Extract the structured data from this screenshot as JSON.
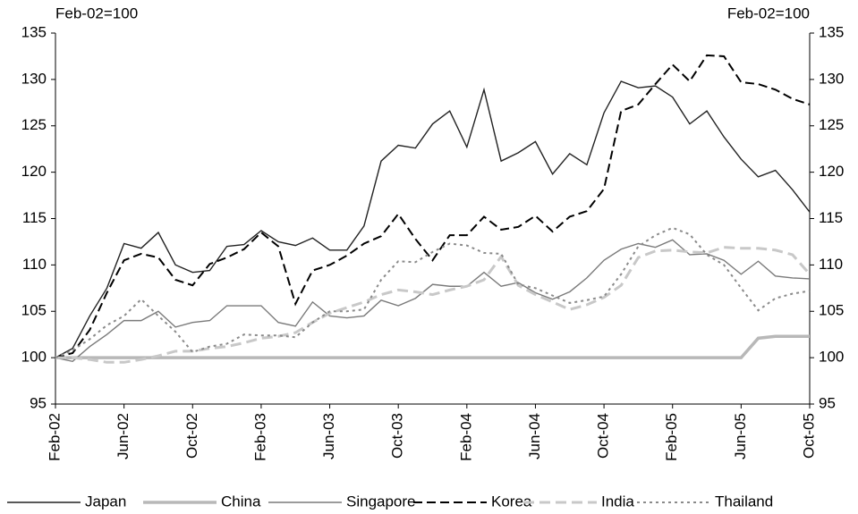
{
  "chart_data": {
    "type": "line",
    "ylabel": "Feb-02=100",
    "y2label": "Feb-02=100",
    "categories": [
      "Feb-02",
      null,
      null,
      null,
      "Jun-02",
      null,
      null,
      null,
      "Oct-02",
      null,
      null,
      null,
      "Feb-03",
      null,
      null,
      null,
      "Jun-03",
      null,
      null,
      null,
      "Oct-03",
      null,
      null,
      null,
      "Feb-04",
      null,
      null,
      null,
      "Jun-04",
      null,
      null,
      null,
      "Oct-04",
      null,
      null,
      null,
      "Feb-05",
      null,
      null,
      null,
      "Jun-05",
      null,
      null,
      null,
      "Oct-05"
    ],
    "ylim": [
      95,
      135
    ],
    "yticks": [
      95,
      100,
      105,
      110,
      115,
      120,
      125,
      130,
      135
    ],
    "y2lim": [
      95,
      135
    ],
    "y2ticks": [
      95,
      100,
      105,
      110,
      115,
      120,
      125,
      130,
      135
    ],
    "legend": "bottom",
    "series": [
      {
        "name": "Japan",
        "color": "#222222",
        "style": "solid",
        "values": [
          100,
          101,
          104.5,
          107.5,
          112.3,
          111.8,
          113.5,
          110,
          109.2,
          109.4,
          112,
          112.2,
          113.7,
          112.5,
          112.1,
          112.9,
          111.6,
          111.6,
          114.2,
          121.2,
          122.9,
          122.6,
          125.2,
          126.6,
          122.7,
          128.9,
          121.2,
          122.1,
          123.3,
          119.8,
          122,
          120.8,
          126.4,
          129.8,
          129.1,
          129.3,
          128.1,
          125.2,
          126.6,
          123.8,
          121.4,
          119.5,
          120.2,
          118.1,
          115.7
        ]
      },
      {
        "name": "China",
        "color": "#b8b8b8",
        "style": "thick",
        "values": [
          100,
          100,
          100,
          100,
          100,
          100,
          100,
          100,
          100,
          100,
          100,
          100,
          100,
          100,
          100,
          100,
          100,
          100,
          100,
          100,
          100,
          100,
          100,
          100,
          100,
          100,
          100,
          100,
          100,
          100,
          100,
          100,
          100,
          100,
          100,
          100,
          100,
          100,
          100,
          100,
          100,
          102.1,
          102.3,
          102.3,
          102.3
        ]
      },
      {
        "name": "Singapore",
        "color": "#7a7a7a",
        "style": "solid",
        "values": [
          100,
          99.6,
          101.2,
          102.5,
          104,
          104,
          105,
          103.3,
          103.8,
          104,
          105.6,
          105.6,
          105.6,
          103.8,
          103.4,
          106,
          104.5,
          104.3,
          104.5,
          106.2,
          105.6,
          106.4,
          107.9,
          107.7,
          107.7,
          109.2,
          107.7,
          108.1,
          107,
          106.3,
          107.1,
          108.6,
          110.5,
          111.7,
          112.3,
          111.9,
          112.7,
          111.1,
          111.2,
          110.5,
          109,
          110.4,
          108.8,
          108.6,
          108.5
        ]
      },
      {
        "name": "Korea",
        "color": "#000000",
        "style": "dashed",
        "values": [
          100,
          100.5,
          103,
          107,
          110.5,
          111.2,
          110.8,
          108.4,
          107.8,
          110.1,
          110.8,
          111.7,
          113.5,
          112,
          105.8,
          109.4,
          110,
          111,
          112.3,
          113.1,
          115.5,
          112.8,
          110.5,
          113.2,
          113.2,
          115.2,
          113.8,
          114.1,
          115.3,
          113.6,
          115.2,
          115.8,
          118.2,
          126.6,
          127.3,
          129.5,
          131.6,
          129.8,
          132.6,
          132.5,
          129.7,
          129.5,
          128.9,
          127.9,
          127.3
        ]
      },
      {
        "name": "India",
        "color": "#c8c8c8",
        "style": "thick-dashed",
        "values": [
          100,
          100,
          99.8,
          99.5,
          99.5,
          99.8,
          100.2,
          100.7,
          100.7,
          101,
          101.2,
          101.6,
          102.1,
          102.3,
          102.7,
          103.8,
          104.8,
          105.4,
          106,
          106.8,
          107.3,
          107.1,
          106.8,
          107.3,
          107.7,
          108.4,
          110.9,
          107.8,
          106.8,
          106,
          105.2,
          105.7,
          106.5,
          107.8,
          110.8,
          111.5,
          111.6,
          111.4,
          111.3,
          111.9,
          111.8,
          111.8,
          111.6,
          111.1,
          109
        ]
      },
      {
        "name": "Thailand",
        "color": "#8a8a8a",
        "style": "dotted",
        "values": [
          100,
          100.8,
          102,
          103.5,
          104.5,
          106.3,
          104.5,
          102.8,
          100.6,
          101.2,
          101.5,
          102.5,
          102.4,
          102.4,
          102.2,
          103.8,
          105,
          105,
          105.2,
          108.4,
          110.4,
          110.3,
          111.4,
          112.3,
          112.1,
          111.3,
          111.2,
          107.9,
          107.5,
          106.7,
          105.9,
          106.2,
          106.6,
          109,
          112,
          113.2,
          114,
          113.3,
          111.1,
          110,
          107.5,
          105.1,
          106.4,
          106.9,
          107.2
        ]
      }
    ]
  }
}
